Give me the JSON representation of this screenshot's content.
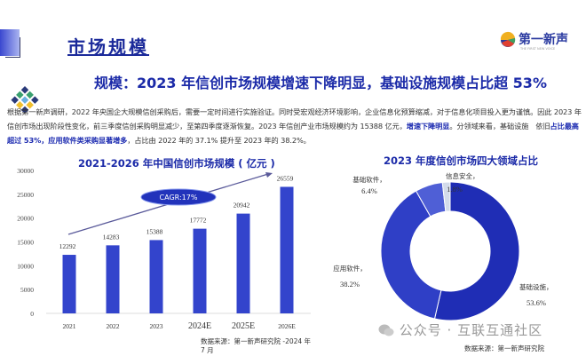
{
  "header": {
    "title": "市场规模",
    "logo_text": "第一新声",
    "logo_tagline": "THE FIRST NEW VOICE"
  },
  "headline": "规模：2023 年信创市场规模增速下降明显，基础设施规模占比超 53%",
  "paragraph": {
    "part1": "根据第一新声调研，2022 年央国企大规模信创采购后，需要一定时间进行实施验证。同时受宏观经济环境影响，企业信息化预算缩减，对于信息化项目投入更为谨慎。因此 2023 年信创市场出现阶段性变化，前三季度信创采购明显减少，至第四季度逐渐恢复。2023 年信创产业市场规模约为 15388 亿元，",
    "hl1": "增速下降明显",
    "part2": "。分领域来看，基础设施　依旧",
    "hl2": "占比最高超过 53%，应用软件类采购显著增多",
    "part3": "，占比由 2022 年的 37.1% 提升至 2023 年的 38.2%。"
  },
  "colors": {
    "accent": "#1b2aa8",
    "bar": "#3344cc"
  },
  "chart_data": [
    {
      "type": "bar",
      "title": "2021-2026 年中国信创市场规模 ( 亿元 )",
      "categories": [
        "2021",
        "2022",
        "2023",
        "2024E",
        "2025E",
        "2026E"
      ],
      "values": [
        12292,
        14283,
        15388,
        17772,
        20942,
        26559
      ],
      "data_labels": [
        "12292",
        "14283",
        "15388",
        "17772",
        "20942",
        "26559"
      ],
      "yticks": [
        "0",
        "5000",
        "10000",
        "15000",
        "20000",
        "25000",
        "30000"
      ],
      "ylim": [
        0,
        30000
      ],
      "annotation": "CAGR:17%",
      "source": "数据来源：第一新声研究院 -2024 年 7 月"
    },
    {
      "type": "pie",
      "donut": true,
      "title": "2023 年度信创市场四大领域占比",
      "slices": [
        {
          "label": "基础设施",
          "value": 53.6,
          "text": "53.6%",
          "color": "#1f2db5"
        },
        {
          "label": "应用软件",
          "value": 38.2,
          "text": "38.2%",
          "color": "#2f3fc6"
        },
        {
          "label": "基础软件",
          "value": 6.4,
          "text": "6.4%",
          "color": "#4f5fd6"
        },
        {
          "label": "信息安全",
          "value": 1.8,
          "text": "1.8%",
          "color": "#d3dbea"
        }
      ],
      "source": "数据来源：第一新声研究院"
    }
  ],
  "watermark": "公众号 · 互联互通社区"
}
